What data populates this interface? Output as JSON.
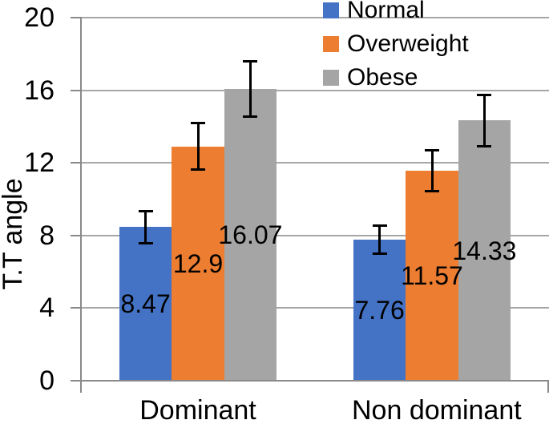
{
  "chart_data": {
    "type": "bar",
    "title": "",
    "xlabel": "",
    "ylabel": "T.T angle",
    "ylim": [
      0,
      20
    ],
    "yticks": [
      "0",
      "4",
      "8",
      "12",
      "16",
      "20"
    ],
    "grid": true,
    "legend_position": "top-right",
    "categories": [
      "Dominant",
      "Non dominant"
    ],
    "series": [
      {
        "name": "Normal",
        "color": "#4472C4",
        "values": [
          8.47,
          7.76
        ],
        "errors": [
          0.9,
          0.8
        ]
      },
      {
        "name": "Overweight",
        "color": "#ED7D31",
        "values": [
          12.9,
          11.57
        ],
        "errors": [
          1.3,
          1.15
        ]
      },
      {
        "name": "Obese",
        "color": "#A5A5A5",
        "values": [
          16.07,
          14.33
        ],
        "errors": [
          1.55,
          1.45
        ]
      }
    ],
    "value_labels": [
      "8.47",
      "12.9",
      "16.07",
      "7.76",
      "11.57",
      "14.33"
    ],
    "colors": {
      "gridline": "#a6a6a6",
      "axis": "#898989",
      "error_bar": "#000000",
      "text": "#000000",
      "background": "#ffffff"
    }
  }
}
